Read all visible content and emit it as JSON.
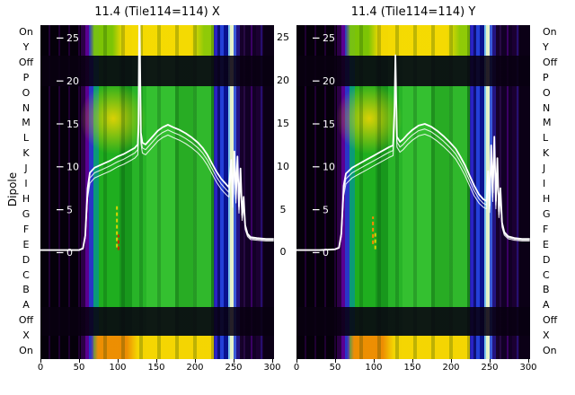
{
  "figure": {
    "background": "#ffffff",
    "dipole_axis_label": "Dipole",
    "dipole_labels": [
      "On",
      "Y",
      "Off",
      "P",
      "O",
      "N",
      "M",
      "L",
      "K",
      "J",
      "I",
      "H",
      "G",
      "F",
      "E",
      "D",
      "C",
      "B",
      "A",
      "Off",
      "X",
      "On"
    ],
    "x_ticks": [
      0,
      50,
      100,
      150,
      200,
      250,
      300
    ],
    "y_ticks": [
      25,
      20,
      15,
      10,
      5,
      0
    ],
    "right_ticks": [
      25,
      20,
      15,
      10,
      5,
      0
    ],
    "titles": {
      "x": "11.4 (Tile114=114) X",
      "y": "11.4 (Tile114=114) Y"
    }
  },
  "chart_data": {
    "type": "heatmap",
    "description": "Two beamformer test spectrograms (dipole state rows vs frequency channel) with overlaid white bandpass power traces",
    "xlim": [
      0,
      310
    ],
    "ylim": [
      0,
      27.5
    ],
    "rows": [
      "On",
      "Y",
      "Off",
      "P",
      "O",
      "N",
      "M",
      "L",
      "K",
      "J",
      "I",
      "H",
      "G",
      "F",
      "E",
      "D",
      "C",
      "B",
      "A",
      "Off",
      "X",
      "On"
    ],
    "palette": {
      "background": "#05000a",
      "purple": "#5a0092",
      "blue": "#2a35c8",
      "green": "#28b428",
      "yellow": "#ffd900",
      "orange": "#ff9900",
      "line": "#ffffff"
    },
    "trace_offsets": [
      0,
      -0.6,
      -1.2
    ],
    "panels": [
      {
        "title": "11.4 (Tile114=114) X",
        "line": [
          [
            0,
            0.3
          ],
          [
            30,
            0.3
          ],
          [
            50,
            0.3
          ],
          [
            55,
            0.5
          ],
          [
            58,
            2.0
          ],
          [
            61,
            7.5
          ],
          [
            64,
            9.3
          ],
          [
            70,
            9.9
          ],
          [
            80,
            10.3
          ],
          [
            90,
            10.7
          ],
          [
            100,
            11.2
          ],
          [
            108,
            11.5
          ],
          [
            116,
            11.9
          ],
          [
            122,
            12.2
          ],
          [
            126,
            12.6
          ],
          [
            127,
            15.0
          ],
          [
            128,
            30.0
          ],
          [
            130,
            14.0
          ],
          [
            132,
            12.8
          ],
          [
            136,
            12.6
          ],
          [
            140,
            13.0
          ],
          [
            146,
            13.6
          ],
          [
            152,
            14.2
          ],
          [
            158,
            14.6
          ],
          [
            165,
            14.9
          ],
          [
            172,
            14.6
          ],
          [
            180,
            14.3
          ],
          [
            188,
            13.9
          ],
          [
            196,
            13.4
          ],
          [
            204,
            12.8
          ],
          [
            210,
            12.2
          ],
          [
            216,
            11.4
          ],
          [
            222,
            10.4
          ],
          [
            228,
            9.4
          ],
          [
            234,
            8.6
          ],
          [
            240,
            8.0
          ],
          [
            244,
            7.6
          ],
          [
            247,
            10.8
          ],
          [
            249,
            6.2
          ],
          [
            251,
            11.8
          ],
          [
            253,
            6.8
          ],
          [
            255,
            11.2
          ],
          [
            257,
            5.4
          ],
          [
            259,
            9.8
          ],
          [
            261,
            4.4
          ],
          [
            263,
            6.5
          ],
          [
            265,
            3.2
          ],
          [
            268,
            2.2
          ],
          [
            272,
            1.8
          ],
          [
            280,
            1.7
          ],
          [
            292,
            1.6
          ],
          [
            302,
            1.6
          ]
        ],
        "markers": [
          {
            "x": 99,
            "y1": 0.6,
            "y2": 5.4,
            "color": "#d8d400"
          },
          {
            "x": 101,
            "y1": 0.3,
            "y2": 2.1,
            "color": "#cc2a00"
          }
        ]
      },
      {
        "title": "11.4 (Tile114=114) Y",
        "line": [
          [
            0,
            0.3
          ],
          [
            30,
            0.3
          ],
          [
            50,
            0.4
          ],
          [
            55,
            0.6
          ],
          [
            58,
            2.2
          ],
          [
            61,
            7.8
          ],
          [
            64,
            9.2
          ],
          [
            72,
            9.9
          ],
          [
            82,
            10.4
          ],
          [
            92,
            10.9
          ],
          [
            100,
            11.3
          ],
          [
            108,
            11.7
          ],
          [
            114,
            12.0
          ],
          [
            120,
            12.3
          ],
          [
            125,
            12.5
          ],
          [
            127,
            17.0
          ],
          [
            128,
            23.0
          ],
          [
            130,
            13.5
          ],
          [
            134,
            12.9
          ],
          [
            138,
            13.2
          ],
          [
            144,
            13.8
          ],
          [
            150,
            14.3
          ],
          [
            158,
            14.8
          ],
          [
            166,
            15.0
          ],
          [
            174,
            14.7
          ],
          [
            182,
            14.2
          ],
          [
            190,
            13.6
          ],
          [
            198,
            12.9
          ],
          [
            206,
            12.1
          ],
          [
            212,
            11.2
          ],
          [
            218,
            10.2
          ],
          [
            224,
            9.0
          ],
          [
            230,
            7.8
          ],
          [
            236,
            6.8
          ],
          [
            242,
            6.2
          ],
          [
            246,
            6.0
          ],
          [
            248,
            9.5
          ],
          [
            250,
            5.5
          ],
          [
            252,
            12.5
          ],
          [
            254,
            7.0
          ],
          [
            256,
            13.5
          ],
          [
            258,
            6.0
          ],
          [
            260,
            11.0
          ],
          [
            262,
            4.8
          ],
          [
            264,
            7.5
          ],
          [
            266,
            3.5
          ],
          [
            269,
            2.4
          ],
          [
            274,
            1.9
          ],
          [
            282,
            1.7
          ],
          [
            292,
            1.6
          ],
          [
            302,
            1.6
          ]
        ],
        "markers": [
          {
            "x": 99,
            "y1": 1.0,
            "y2": 4.2,
            "color": "#ff8800"
          },
          {
            "x": 102,
            "y1": 0.4,
            "y2": 2.4,
            "color": "#d8d400"
          }
        ]
      }
    ]
  }
}
